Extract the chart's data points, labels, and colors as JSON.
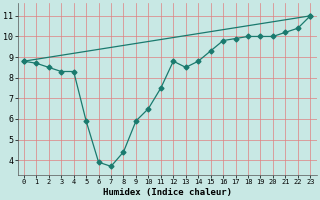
{
  "zigzag_x": [
    0,
    1,
    2,
    3,
    4,
    5,
    6,
    7,
    8,
    9,
    10,
    11,
    12,
    13,
    14,
    15,
    16,
    17,
    18,
    19,
    20,
    21,
    22,
    23
  ],
  "zigzag_y": [
    8.8,
    8.7,
    8.5,
    8.3,
    8.3,
    5.9,
    3.9,
    3.7,
    4.4,
    5.9,
    6.5,
    7.5,
    8.8,
    8.5,
    8.8,
    9.3,
    9.8,
    9.9,
    10.0,
    10.0,
    10.0,
    10.2,
    10.4,
    11.0
  ],
  "trend_x": [
    0,
    23
  ],
  "trend_y": [
    8.8,
    11.0
  ],
  "line_color": "#1a7a6e",
  "background_color": "#c8e8e4",
  "grid_color": "#e08080",
  "xlabel": "Humidex (Indice chaleur)",
  "xlim": [
    -0.5,
    23.5
  ],
  "ylim": [
    3.3,
    11.6
  ],
  "yticks": [
    4,
    5,
    6,
    7,
    8,
    9,
    10,
    11
  ],
  "xticks": [
    0,
    1,
    2,
    3,
    4,
    5,
    6,
    7,
    8,
    9,
    10,
    11,
    12,
    13,
    14,
    15,
    16,
    17,
    18,
    19,
    20,
    21,
    22,
    23
  ],
  "xtick_labels": [
    "0",
    "1",
    "2",
    "3",
    "4",
    "5",
    "6",
    "7",
    "8",
    "9",
    "10",
    "11",
    "12",
    "13",
    "14",
    "15",
    "16",
    "17",
    "18",
    "19",
    "20",
    "21",
    "22",
    "23"
  ],
  "marker": "D",
  "marker_size": 2.5,
  "linewidth": 0.9
}
